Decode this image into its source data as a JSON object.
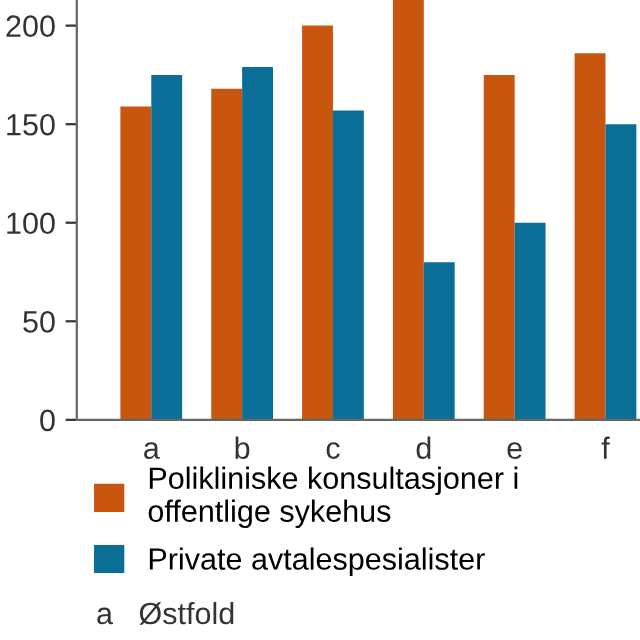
{
  "chart_data": {
    "type": "bar",
    "categories": [
      "a",
      "b",
      "c",
      "d",
      "e",
      "f"
    ],
    "series": [
      {
        "name": "Polikliniske konsultasjoner i\noffentlige sykehus",
        "color": "#c8560f",
        "values": [
          159,
          168,
          200,
          213,
          175,
          186
        ]
      },
      {
        "name": "Private avtalespesialister",
        "color": "#0a6e96",
        "values": [
          175,
          179,
          157,
          80,
          100,
          150
        ]
      }
    ],
    "ylim": [
      0,
      213
    ],
    "yticks": [
      0,
      50,
      100,
      150,
      200
    ],
    "grid": false,
    "legend": "bottom",
    "annotations": [
      "a   Østfold"
    ]
  }
}
